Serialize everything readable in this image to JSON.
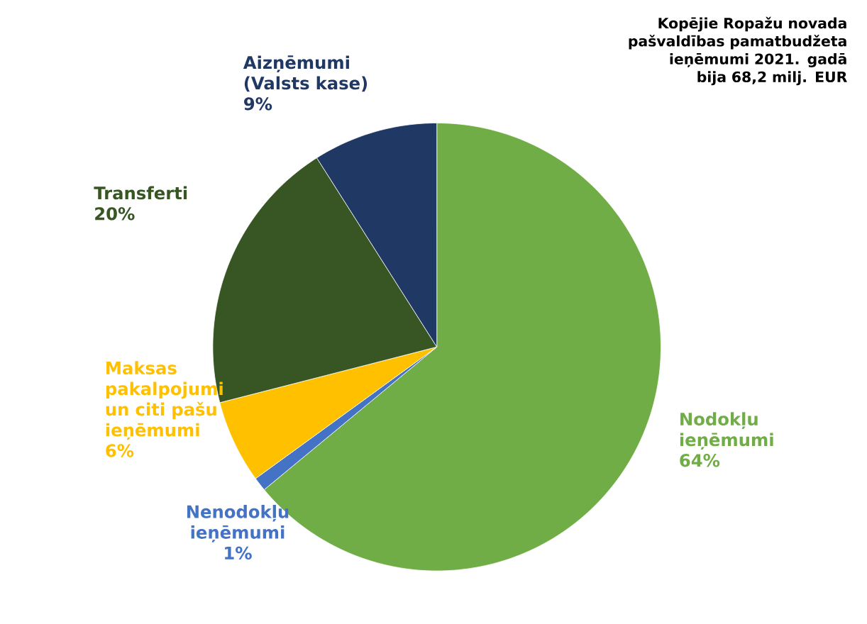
{
  "chart_data": {
    "type": "pie",
    "categories": [
      "Nodokļu ieņēmumi",
      "Nenodokļu ieņēmumi",
      "Maksas pakalpojumi un citi pašu ieņēmumi",
      "Transferti",
      "Aizņēmumi (Valsts kase)"
    ],
    "values": [
      64,
      1,
      6,
      20,
      9
    ],
    "value_labels": [
      "64%",
      "1%",
      "6%",
      "20%",
      "9%"
    ],
    "colors": [
      "#70ad47",
      "#4472c4",
      "#ffc000",
      "#375623",
      "#203864"
    ],
    "annotations": [
      "Kopējie Ropažu novada pašvaldības pamatbudžeta ieņēmumi 2021. gadā bija 68,2 milj. EUR"
    ]
  }
}
